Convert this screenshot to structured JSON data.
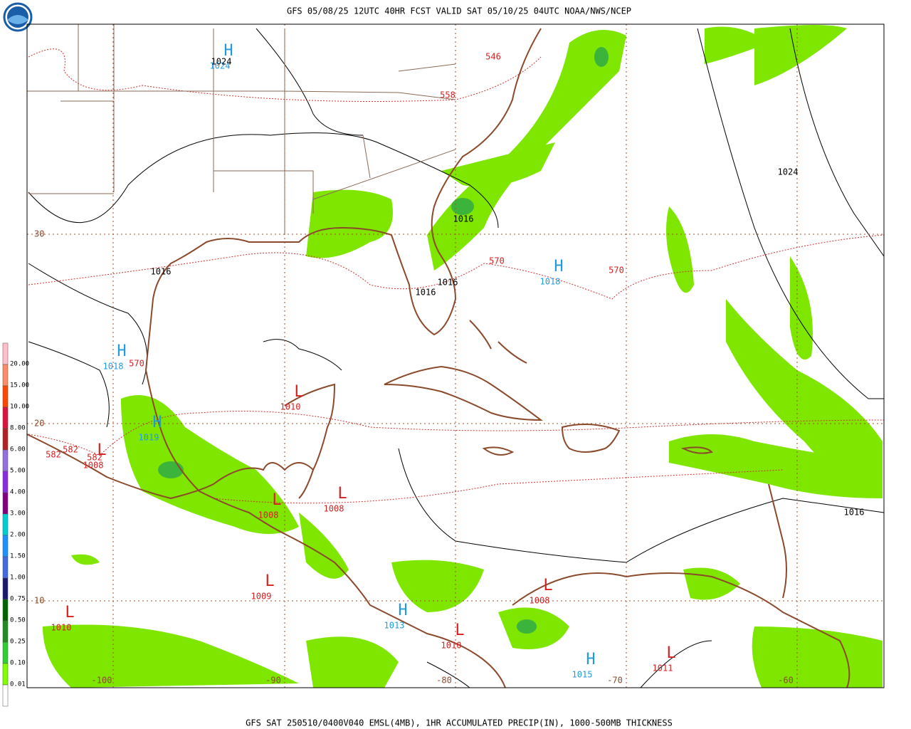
{
  "header": {
    "title": "GFS 05/08/25 12UTC 40HR FCST VALID SAT 05/10/25 04UTC NOAA/NWS/NCEP"
  },
  "footer": {
    "caption": "GFS SAT 250510/0400V040 EMSL(4MB), 1HR ACCUMULATED PRECIP(IN), 1000-500MB THICKNESS"
  },
  "legend": {
    "labels": [
      "20.00",
      "15.00",
      "10.00",
      "8.00",
      "6.00",
      "5.00",
      "4.00",
      "3.00",
      "2.00",
      "1.50",
      "1.00",
      "0.75",
      "0.50",
      "0.25",
      "0.10",
      "0.01"
    ]
  },
  "grid": {
    "lat_labels": [
      "30",
      "20",
      "10"
    ],
    "lon_labels": [
      "-100",
      "-90",
      "-80",
      "-70",
      "-60"
    ]
  },
  "pressure_centers": [
    {
      "symbol": "H",
      "value": "1024"
    },
    {
      "symbol": "H",
      "value": "1018"
    },
    {
      "symbol": "H",
      "value": "1018"
    },
    {
      "symbol": "H",
      "value": "1019"
    },
    {
      "symbol": "H",
      "value": "1013"
    },
    {
      "symbol": "H",
      "value": "1015"
    },
    {
      "symbol": "L",
      "value": "1010"
    },
    {
      "symbol": "L",
      "value": "1008"
    },
    {
      "symbol": "L",
      "value": "1008"
    },
    {
      "symbol": "L",
      "value": "1008"
    },
    {
      "symbol": "L",
      "value": "1009"
    },
    {
      "symbol": "L",
      "value": "1010"
    },
    {
      "symbol": "L",
      "value": "1010"
    },
    {
      "symbol": "L",
      "value": "1008"
    },
    {
      "symbol": "L",
      "value": "1011"
    }
  ],
  "isobar_labels": [
    "1024",
    "1016",
    "1016",
    "1016",
    "1016",
    "1024",
    "1016"
  ],
  "thickness_labels": [
    "546",
    "558",
    "570",
    "570",
    "570",
    "582",
    "582",
    "582"
  ]
}
